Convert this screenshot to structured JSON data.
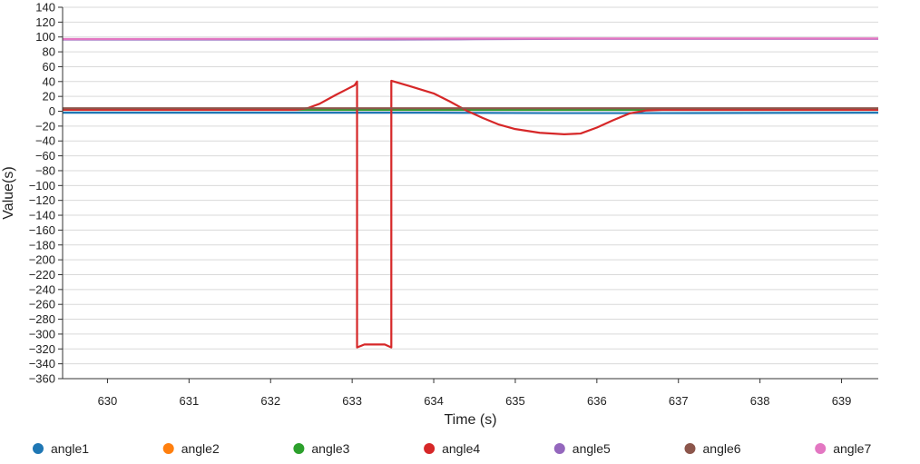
{
  "chart_data": {
    "type": "line",
    "title": "",
    "xlabel": "Time (s)",
    "ylabel": "Value(s)",
    "xlim": [
      629.45,
      639.45
    ],
    "ylim": [
      -360,
      140
    ],
    "x_ticks": [
      630,
      631,
      632,
      633,
      634,
      635,
      636,
      637,
      638,
      639
    ],
    "y_ticks": [
      140,
      120,
      100,
      80,
      60,
      40,
      20,
      0,
      -20,
      -40,
      -60,
      -80,
      -100,
      -120,
      -140,
      -160,
      -180,
      -200,
      -220,
      -240,
      -260,
      -280,
      -300,
      -320,
      -340,
      -360
    ],
    "grid": "horizontal",
    "legend_position": "bottom",
    "series": [
      {
        "name": "angle1",
        "color": "#1f77b4",
        "points": [
          [
            629.45,
            -2
          ],
          [
            632.0,
            -2
          ],
          [
            634.0,
            -2
          ],
          [
            635.5,
            -2.5
          ],
          [
            636.5,
            -2.5
          ],
          [
            639.45,
            -2
          ]
        ]
      },
      {
        "name": "angle2",
        "color": "#ff7f0e",
        "points": [
          [
            629.45,
            3
          ],
          [
            639.45,
            3
          ]
        ]
      },
      {
        "name": "angle3",
        "color": "#2ca02c",
        "points": [
          [
            629.45,
            2
          ],
          [
            639.45,
            2
          ]
        ]
      },
      {
        "name": "angle4",
        "color": "#d62728",
        "points": [
          [
            629.45,
            2
          ],
          [
            632.3,
            2
          ],
          [
            632.45,
            4
          ],
          [
            632.6,
            10
          ],
          [
            632.8,
            22
          ],
          [
            633.03,
            35
          ],
          [
            633.06,
            40
          ],
          [
            633.06,
            -318
          ],
          [
            633.15,
            -314
          ],
          [
            633.4,
            -314
          ],
          [
            633.48,
            -318
          ],
          [
            633.48,
            41
          ],
          [
            633.7,
            34
          ],
          [
            634.0,
            24
          ],
          [
            634.2,
            13
          ],
          [
            634.4,
            1
          ],
          [
            634.6,
            -9
          ],
          [
            634.8,
            -18
          ],
          [
            635.0,
            -24
          ],
          [
            635.3,
            -29
          ],
          [
            635.6,
            -31
          ],
          [
            635.8,
            -30
          ],
          [
            636.0,
            -22
          ],
          [
            636.2,
            -12
          ],
          [
            636.4,
            -3
          ],
          [
            636.6,
            1
          ],
          [
            636.8,
            2
          ],
          [
            639.45,
            2
          ]
        ]
      },
      {
        "name": "angle5",
        "color": "#9467bd",
        "points": [
          [
            629.45,
            96.5
          ],
          [
            633.5,
            96.5
          ],
          [
            634.5,
            97
          ],
          [
            636.0,
            97.5
          ],
          [
            639.45,
            97.5
          ]
        ]
      },
      {
        "name": "angle6",
        "color": "#8c564b",
        "points": [
          [
            629.45,
            4
          ],
          [
            639.45,
            4
          ]
        ]
      },
      {
        "name": "angle7",
        "color": "#e377c2",
        "points": [
          [
            629.45,
            97.2
          ],
          [
            636.0,
            98
          ],
          [
            639.45,
            98
          ]
        ]
      }
    ]
  }
}
